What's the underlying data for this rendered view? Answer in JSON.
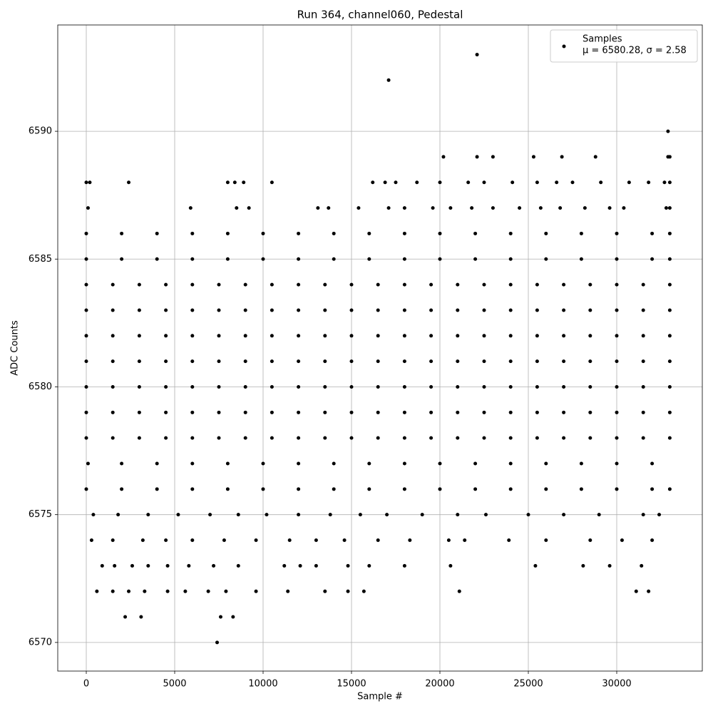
{
  "chart_data": {
    "type": "scatter",
    "title": "Run 364, channel060, Pedestal",
    "xlabel": "Sample #",
    "ylabel": "ADC Counts",
    "legend_label": "Samples",
    "legend_stats": "μ = 6580.28, σ = 2.58",
    "legend_position": "upper right",
    "color": "#000000",
    "grid": true,
    "xlim": [
      -1613,
      34839
    ],
    "ylim": [
      6568.88,
      6594.16
    ],
    "xticks": [
      0,
      5000,
      10000,
      15000,
      20000,
      25000,
      30000
    ],
    "yticks": [
      6570,
      6575,
      6580,
      6585,
      6590
    ],
    "levels": [
      {
        "y": 6578,
        "x": [
          0,
          1500,
          3000,
          4500,
          6000,
          7500,
          9000,
          10500,
          12000,
          13500,
          15000,
          16500,
          18000,
          19500,
          21000,
          22500,
          24000,
          25500,
          27000,
          28500,
          30000,
          31500,
          33000
        ]
      },
      {
        "y": 6579,
        "x": [
          0,
          1500,
          3000,
          4500,
          6000,
          7500,
          9000,
          10500,
          12000,
          13500,
          15000,
          16500,
          18000,
          19500,
          21000,
          22500,
          24000,
          25500,
          27000,
          28500,
          30000,
          31500,
          33000
        ]
      },
      {
        "y": 6580,
        "x": [
          0,
          1500,
          3000,
          4500,
          6000,
          7500,
          9000,
          10500,
          12000,
          13500,
          15000,
          16500,
          18000,
          19500,
          21000,
          22500,
          24000,
          25500,
          27000,
          28500,
          30000,
          31500,
          33000
        ]
      },
      {
        "y": 6581,
        "x": [
          0,
          1500,
          3000,
          4500,
          6000,
          7500,
          9000,
          10500,
          12000,
          13500,
          15000,
          16500,
          18000,
          19500,
          21000,
          22500,
          24000,
          25500,
          27000,
          28500,
          30000,
          31500,
          33000
        ]
      },
      {
        "y": 6582,
        "x": [
          0,
          1500,
          3000,
          4500,
          6000,
          7500,
          9000,
          10500,
          12000,
          13500,
          15000,
          16500,
          18000,
          19500,
          21000,
          22500,
          24000,
          25500,
          27000,
          28500,
          30000,
          31500,
          33000
        ]
      },
      {
        "y": 6583,
        "x": [
          0,
          1500,
          3000,
          4500,
          6000,
          7500,
          9000,
          10500,
          12000,
          13500,
          15000,
          16500,
          18000,
          19500,
          21000,
          22500,
          24000,
          25500,
          27000,
          28500,
          30000,
          31500,
          33000
        ]
      },
      {
        "y": 6584,
        "x": [
          0,
          1500,
          3000,
          4500,
          6000,
          7500,
          9000,
          10500,
          12000,
          13500,
          15000,
          16500,
          18000,
          19500,
          21000,
          22500,
          24000,
          25500,
          27000,
          28500,
          30000,
          31500,
          33000
        ]
      },
      {
        "y": 6576,
        "x": [
          0,
          2000,
          4000,
          6000,
          8000,
          10000,
          12000,
          14000,
          16000,
          18000,
          20000,
          22000,
          24000,
          26000,
          28000,
          30000,
          32000,
          33000
        ]
      },
      {
        "y": 6577,
        "x": [
          100,
          2000,
          4000,
          6000,
          8000,
          10000,
          12000,
          14000,
          16000,
          18000,
          20000,
          22000,
          24000,
          26000,
          28000,
          30000,
          32000
        ]
      },
      {
        "y": 6585,
        "x": [
          0,
          2000,
          4000,
          6000,
          8000,
          10000,
          12000,
          14000,
          16000,
          18000,
          20000,
          22000,
          24000,
          26000,
          28000,
          30000,
          32000,
          33000
        ]
      },
      {
        "y": 6586,
        "x": [
          0,
          2000,
          4000,
          6000,
          8000,
          10000,
          12000,
          14000,
          16000,
          18000,
          20000,
          22000,
          24000,
          26000,
          28000,
          30000,
          32000,
          33000
        ]
      },
      {
        "y": 6575,
        "x": [
          400,
          1800,
          3500,
          5200,
          7000,
          8600,
          10200,
          12000,
          13800,
          15500,
          17000,
          19000,
          21000,
          22600,
          25000,
          27000,
          29000,
          31500,
          32400
        ]
      },
      {
        "y": 6574,
        "x": [
          300,
          1500,
          3200,
          4500,
          6000,
          7800,
          9600,
          11500,
          13000,
          14600,
          16500,
          18300,
          20500,
          21400,
          23900,
          26000,
          28500,
          30300,
          32000
        ]
      },
      {
        "y": 6587,
        "x": [
          100,
          5900,
          8500,
          9200,
          13100,
          13700,
          15400,
          17100,
          18000,
          19600,
          20600,
          21800,
          23000,
          24500,
          25700,
          26800,
          28200,
          29600,
          30400,
          32800,
          33000
        ]
      },
      {
        "y": 6588,
        "x": [
          0,
          200,
          2400,
          8000,
          8400,
          8900,
          10500,
          16200,
          16900,
          17500,
          18700,
          20000,
          21600,
          22500,
          24100,
          25500,
          26600,
          27500,
          29100,
          30700,
          31800,
          32700,
          33000
        ]
      },
      {
        "y": 6573,
        "x": [
          900,
          1600,
          2600,
          3500,
          4600,
          5800,
          7200,
          8600,
          11200,
          12100,
          13000,
          14800,
          16000,
          18000,
          20600,
          25400,
          28100,
          29600,
          31400
        ]
      },
      {
        "y": 6572,
        "x": [
          600,
          1500,
          2400,
          3300,
          4600,
          5600,
          6900,
          7900,
          9600,
          11400,
          13500,
          14800,
          15700,
          21100,
          31100,
          31800
        ]
      },
      {
        "y": 6571,
        "x": [
          2200,
          3100,
          7600,
          8300
        ]
      },
      {
        "y": 6570,
        "x": [
          7400
        ]
      },
      {
        "y": 6589,
        "x": [
          20200,
          22100,
          23000,
          25300,
          26900,
          28800,
          32900,
          33000
        ]
      },
      {
        "y": 6590,
        "x": [
          32900
        ]
      },
      {
        "y": 6592,
        "x": [
          17100
        ]
      },
      {
        "y": 6593,
        "x": [
          22100
        ]
      }
    ]
  }
}
